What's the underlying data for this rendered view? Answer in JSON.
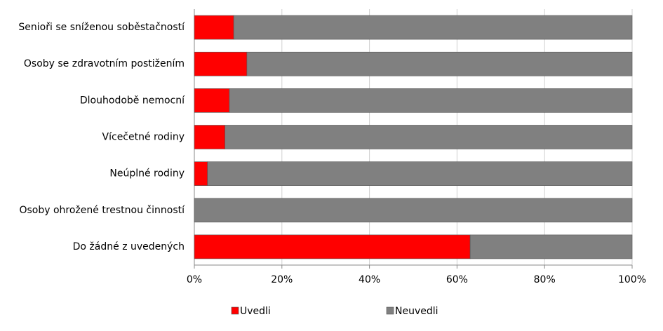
{
  "chart_data": {
    "type": "stacked-bar-horizontal",
    "categories": [
      "Senioři se sníženou soběstačností",
      "Osoby se zdravotním postižením",
      "Dlouhodobě nemocní",
      "Vícečetné rodiny",
      "Neúplné rodiny",
      "Osoby ohrožené trestnou činností",
      "Do žádné z uvedených"
    ],
    "series": [
      {
        "name": "Uvedli",
        "color": "#ff0000",
        "values": [
          9,
          12,
          8,
          7,
          3,
          0,
          63
        ]
      },
      {
        "name": "Neuvedli",
        "color": "#808080",
        "values": [
          91,
          88,
          92,
          93,
          97,
          100,
          37
        ]
      }
    ],
    "xlim": [
      0,
      100
    ],
    "xticks": [
      {
        "value": 0,
        "label": "0%"
      },
      {
        "value": 20,
        "label": "20%"
      },
      {
        "value": 40,
        "label": "40%"
      },
      {
        "value": 60,
        "label": "60%"
      },
      {
        "value": 80,
        "label": "80%"
      },
      {
        "value": 100,
        "label": "100%"
      }
    ],
    "grid": true
  }
}
